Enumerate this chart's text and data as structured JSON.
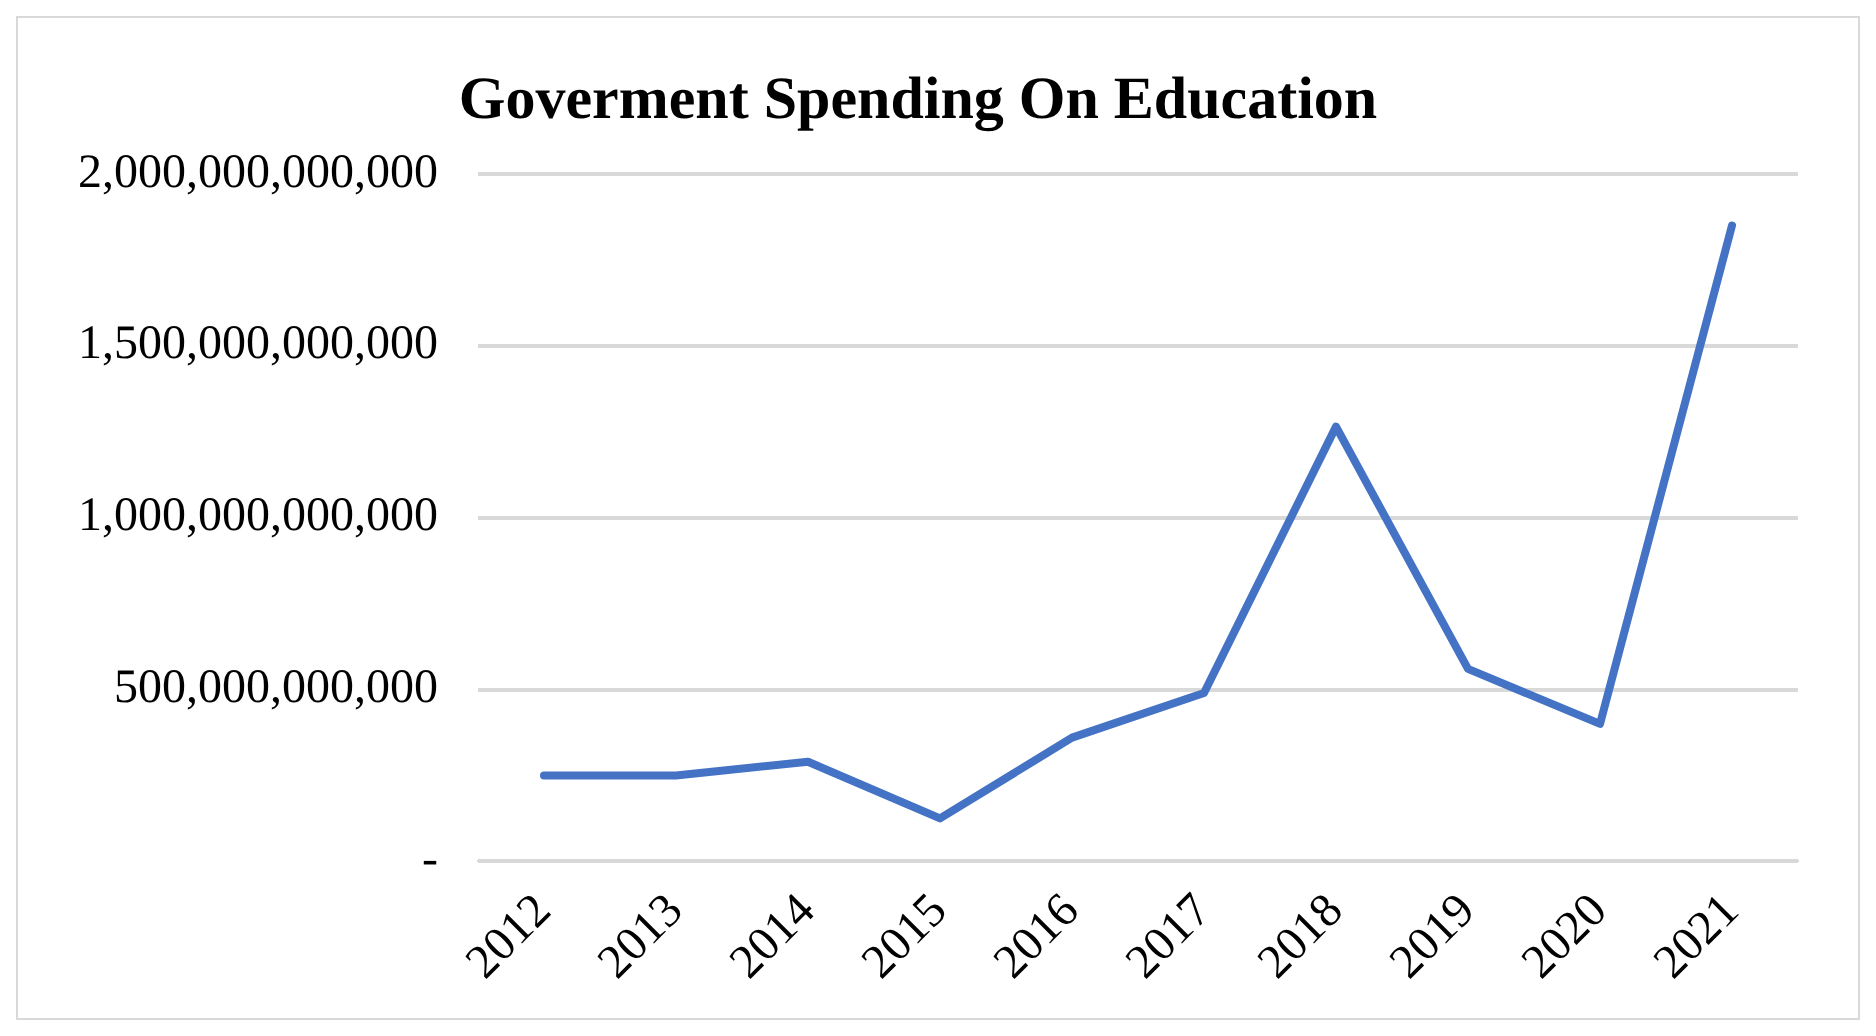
{
  "chart_data": {
    "type": "line",
    "title": "Goverment Spending On Education",
    "categories": [
      "2012",
      "2013",
      "2014",
      "2015",
      "2016",
      "2017",
      "2018",
      "2019",
      "2020",
      "2021"
    ],
    "series": [
      {
        "color": "#4472c4",
        "values": [
          250000000000,
          250000000000,
          290000000000,
          125000000000,
          360000000000,
          490000000000,
          1265000000000,
          560000000000,
          400000000000,
          1850000000000
        ]
      }
    ],
    "ylim": [
      0,
      2000000000000
    ],
    "yticks": [
      {
        "value": 0,
        "label": "-"
      },
      {
        "value": 500000000000,
        "label": "500,000,000,000"
      },
      {
        "value": 1000000000000,
        "label": "1,000,000,000,000"
      },
      {
        "value": 1500000000000,
        "label": "1,500,000,000,000"
      },
      {
        "value": 2000000000000,
        "label": "2,000,000,000,000"
      }
    ],
    "grid": "y",
    "legend": false,
    "marker": "none",
    "line_style": "solid"
  }
}
